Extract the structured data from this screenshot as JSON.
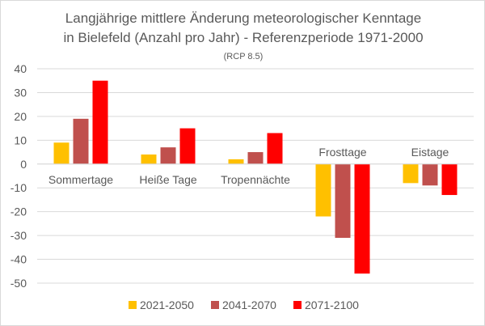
{
  "chart_data": {
    "type": "bar",
    "title": [
      "Langjährige mittlere Änderung meteorologischer Kenntage",
      "in Bielefeld (Anzahl pro Jahr) - Referenzperiode 1971-2000"
    ],
    "subtitle": "(RCP 8.5)",
    "categories": [
      "Sommertage",
      "Heiße Tage",
      "Tropennächte",
      "Frosttage",
      "Eistage"
    ],
    "series": [
      {
        "name": "2021-2050",
        "color": "#FFC000",
        "values": [
          9,
          4,
          2,
          -22,
          -8
        ]
      },
      {
        "name": "2041-2070",
        "color": "#C0504D",
        "values": [
          19,
          7,
          5,
          -31,
          -9
        ]
      },
      {
        "name": "2071-2100",
        "color": "#FF0000",
        "values": [
          35,
          15,
          13,
          -46,
          -13
        ]
      }
    ],
    "ylim": [
      -50,
      40
    ],
    "yticks": [
      40,
      30,
      20,
      10,
      0,
      -10,
      -20,
      -30,
      -40,
      -50
    ],
    "grid": true,
    "legend": "bottom",
    "xlabel": "",
    "ylabel": ""
  }
}
